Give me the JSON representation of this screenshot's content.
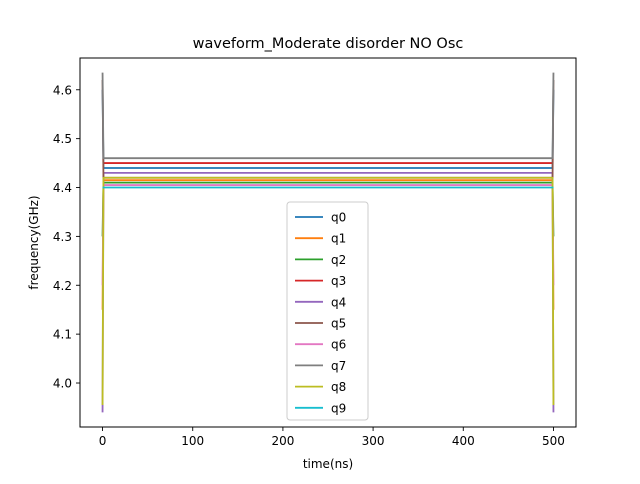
{
  "chart_data": {
    "type": "line",
    "title": "waveform_Moderate disorder NO Osc",
    "xlabel": "time(ns)",
    "ylabel": "frequency(GHz)",
    "xlim": [
      -25,
      525
    ],
    "ylim": [
      3.91,
      4.665
    ],
    "xticks": [
      0,
      100,
      200,
      300,
      400,
      500
    ],
    "xtick_labels": [
      "0",
      "100",
      "200",
      "300",
      "400",
      "500"
    ],
    "yticks": [
      4.0,
      4.1,
      4.2,
      4.3,
      4.4,
      4.5,
      4.6
    ],
    "ytick_labels": [
      "4.0",
      "4.1",
      "4.2",
      "4.3",
      "4.4",
      "4.5",
      "4.6"
    ],
    "grid": false,
    "legend_position": "lower-center",
    "series": [
      {
        "name": "q0",
        "color": "#1f77b4",
        "x": [
          0,
          1,
          499,
          500
        ],
        "y": [
          4.6,
          4.44,
          4.44,
          4.6
        ]
      },
      {
        "name": "q1",
        "color": "#ff7f0e",
        "x": [
          0,
          1,
          499,
          500
        ],
        "y": [
          4.15,
          4.415,
          4.415,
          4.15
        ]
      },
      {
        "name": "q2",
        "color": "#2ca02c",
        "x": [
          0,
          1,
          499,
          500
        ],
        "y": [
          4.3,
          4.41,
          4.41,
          4.3
        ]
      },
      {
        "name": "q3",
        "color": "#d62728",
        "x": [
          0,
          1,
          499,
          500
        ],
        "y": [
          4.45,
          4.45,
          4.45,
          4.45
        ]
      },
      {
        "name": "q4",
        "color": "#9467bd",
        "x": [
          0,
          1,
          499,
          500
        ],
        "y": [
          3.94,
          4.43,
          4.43,
          3.94
        ]
      },
      {
        "name": "q5",
        "color": "#8c564b",
        "x": [
          0,
          1,
          499,
          500
        ],
        "y": [
          4.62,
          4.42,
          4.42,
          4.62
        ]
      },
      {
        "name": "q6",
        "color": "#e377c2",
        "x": [
          0,
          1,
          499,
          500
        ],
        "y": [
          4.2,
          4.405,
          4.405,
          4.2
        ]
      },
      {
        "name": "q7",
        "color": "#7f7f7f",
        "x": [
          0,
          1,
          499,
          500
        ],
        "y": [
          4.635,
          4.46,
          4.46,
          4.635
        ]
      },
      {
        "name": "q8",
        "color": "#bcbd22",
        "x": [
          0,
          1,
          499,
          500
        ],
        "y": [
          3.955,
          4.42,
          4.42,
          3.955
        ]
      },
      {
        "name": "q9",
        "color": "#17becf",
        "x": [
          0,
          1,
          499,
          500
        ],
        "y": [
          4.4,
          4.4,
          4.4,
          4.4
        ]
      }
    ]
  }
}
